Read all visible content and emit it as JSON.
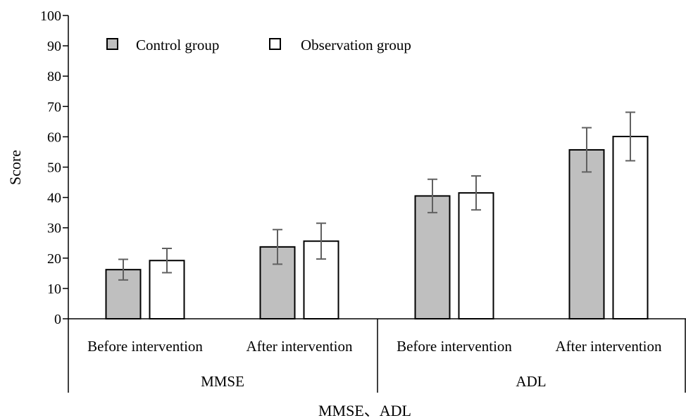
{
  "chart_data": {
    "type": "bar",
    "ylabel": "Score",
    "xlabel": "MMSE、ADL",
    "ylim": [
      0,
      100
    ],
    "yticks": [
      0,
      10,
      20,
      30,
      40,
      50,
      60,
      70,
      80,
      90,
      100
    ],
    "groups": [
      "MMSE",
      "ADL"
    ],
    "categories": [
      "Before intervention",
      "After intervention",
      "Before intervention",
      "After intervention"
    ],
    "category_groups": [
      0,
      0,
      1,
      1
    ],
    "legend_position": "top-left",
    "grid": false,
    "series": [
      {
        "name": "Control group",
        "color": "#bfbfbf",
        "values": [
          16.2,
          23.7,
          40.5,
          55.7
        ],
        "errors": [
          3.4,
          5.7,
          5.5,
          7.3
        ]
      },
      {
        "name": "Observation group",
        "color": "#ffffff",
        "values": [
          19.2,
          25.6,
          41.5,
          60.1
        ],
        "errors": [
          4.0,
          5.9,
          5.6,
          8.0
        ]
      }
    ],
    "error_bar_color": "#606060"
  }
}
